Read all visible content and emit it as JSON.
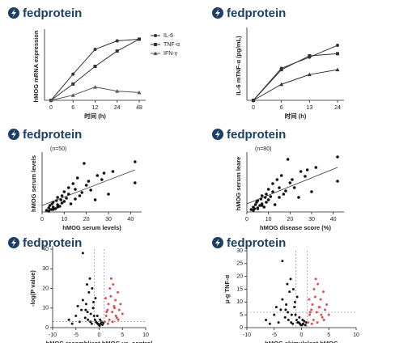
{
  "chart_data": [
    {
      "type": "line",
      "brand": "fedprotein",
      "y_label": "hMOG mRNA expression",
      "x_label": "时间 (h)",
      "categories": [
        "0",
        "6",
        "12",
        "24",
        "48"
      ],
      "ylim": [
        0,
        20
      ],
      "series": [
        {
          "name": "IL-6",
          "color": "#333333",
          "marker": "circle",
          "values": [
            0,
            7.7,
            15,
            17.5,
            18
          ]
        },
        {
          "name": "TNF-α",
          "color": "#333333",
          "marker": "square",
          "values": [
            0,
            4.8,
            10,
            14.5,
            18
          ]
        },
        {
          "name": "IFN-γ",
          "color": "#555555",
          "marker": "triangle",
          "values": [
            0,
            1.5,
            3.9,
            2.7,
            2.3
          ]
        }
      ]
    },
    {
      "type": "line",
      "brand": "fedprotein",
      "y_label": "IL-6 mTNF-α (pg/mL)",
      "x_label": "时间 (h)",
      "categories": [
        "0",
        "6",
        "13",
        "24"
      ],
      "ylim": [
        0,
        100
      ],
      "series": [
        {
          "color": "#333333",
          "marker": "circle",
          "values": [
            0,
            46,
            62,
            79
          ]
        },
        {
          "color": "#333333",
          "marker": "square",
          "values": [
            0,
            44,
            64,
            67
          ]
        },
        {
          "color": "#333333",
          "marker": "triangle",
          "values": [
            0,
            23,
            37,
            44
          ]
        }
      ]
    },
    {
      "type": "scatter",
      "brand": "fedprotein",
      "note": "(n=50)",
      "y_label": "hMOG serum levels",
      "x_label": "hMOG serum levels)",
      "xlim": [
        0,
        45
      ],
      "xticks": [
        0,
        10,
        20,
        30,
        40
      ],
      "ylim": [
        0,
        70
      ],
      "color": "#111111",
      "x": [
        2,
        3,
        3.5,
        4,
        4.5,
        5,
        5,
        6,
        6.5,
        7,
        7,
        8,
        8.5,
        9,
        9,
        10,
        10,
        11,
        12,
        12,
        13,
        14,
        15,
        15,
        16,
        17,
        18,
        19,
        20,
        21,
        22,
        24,
        25,
        27,
        28,
        30,
        32,
        42,
        42,
        3,
        5,
        7
      ],
      "values": [
        2,
        5,
        8,
        3,
        10,
        6,
        12,
        4,
        14,
        9,
        18,
        7,
        15,
        20,
        11,
        25,
        13,
        17,
        30,
        22,
        10,
        35,
        28,
        16,
        42,
        20,
        24,
        60,
        33,
        38,
        27,
        15,
        45,
        40,
        48,
        22,
        50,
        62,
        36,
        1,
        3,
        6
      ],
      "trend": {
        "x": [
          0,
          42
        ],
        "y": [
          8,
          52
        ]
      }
    },
    {
      "type": "scatter",
      "brand": "fedprotein",
      "note": "(n=80)",
      "y_label": "hMOG serum leare",
      "x_label": "hMOG disease score (%)",
      "xlim": [
        0,
        45
      ],
      "xticks": [
        0,
        10,
        20,
        30,
        40
      ],
      "ylim": [
        0,
        70
      ],
      "color": "#111111",
      "x": [
        2,
        3,
        3.5,
        4,
        4.5,
        5,
        5,
        6,
        6.5,
        7,
        7,
        8,
        8.5,
        9,
        9,
        10,
        10,
        11,
        12,
        12,
        13,
        14,
        15,
        15,
        16,
        17,
        18,
        19,
        20,
        21,
        22,
        24,
        25,
        27,
        28,
        30,
        32,
        42,
        42,
        3,
        5,
        7
      ],
      "values": [
        3,
        6,
        4,
        9,
        12,
        5,
        14,
        8,
        16,
        10,
        20,
        6,
        18,
        22,
        12,
        28,
        15,
        19,
        35,
        25,
        9,
        40,
        30,
        18,
        45,
        22,
        26,
        65,
        36,
        40,
        30,
        18,
        50,
        44,
        52,
        25,
        55,
        68,
        38,
        2,
        4,
        8
      ],
      "trend": {
        "x": [
          0,
          42
        ],
        "y": [
          10,
          55
        ]
      }
    },
    {
      "type": "volcano",
      "brand": "fedprotein",
      "y_label": "-log(P value)",
      "x_label": "hMOG recomblient hMOG vs. control",
      "xlim": [
        -10,
        10
      ],
      "xticks": [
        -10,
        -5,
        0,
        5,
        10
      ],
      "ylim": [
        0,
        40
      ],
      "yticks": [
        0,
        10,
        20,
        30,
        40
      ],
      "thresholds": {
        "x": [
          -1,
          1
        ],
        "y": 3
      },
      "series": [
        {
          "color": "#111111",
          "x": [
            -6.5,
            -5,
            -4.2,
            -3.8,
            -3.5,
            -3,
            -2.8,
            -2.5,
            -2.2,
            -2,
            -1.8,
            -1.5,
            -1.3,
            -1.1,
            -0.9,
            -0.7,
            -0.5,
            -0.3,
            -0.1,
            0.1,
            0.3,
            0.5,
            0.7,
            0.9,
            -3.5,
            -2.4,
            -1.6,
            -4.6,
            -0.8,
            -2.9,
            -1.9,
            -0.4,
            0.2,
            -5.8,
            -2.6,
            -1.2
          ],
          "values": [
            4,
            6,
            3,
            9,
            38,
            5,
            12,
            8,
            18,
            25,
            7,
            20,
            10,
            6,
            4,
            3,
            2.5,
            2,
            1.5,
            1,
            2,
            3,
            1.5,
            2.5,
            14,
            4,
            2,
            11,
            15,
            9,
            3,
            6,
            4,
            2,
            22,
            13
          ]
        },
        {
          "color": "#e05050",
          "x": [
            1.2,
            1.5,
            1.8,
            2,
            2.2,
            2.5,
            2.8,
            3,
            3.2,
            3.5,
            3.8,
            4,
            4.3,
            4.6,
            5,
            1.4,
            2.3,
            2.9,
            3.6,
            1.9,
            2.6,
            3.3,
            4.1,
            1.6
          ],
          "values": [
            3,
            6,
            9,
            12,
            4,
            16,
            8,
            22,
            11,
            14,
            5,
            18,
            9,
            12,
            7,
            15,
            20,
            3,
            6,
            2,
            25,
            10,
            4,
            8
          ]
        }
      ]
    },
    {
      "type": "volcano",
      "brand": "fedprotein",
      "y_label": "μ-g TNF-α",
      "x_label": "hMOG skimulalant hMOG",
      "xlim": [
        -10,
        10
      ],
      "xticks": [
        -10,
        -5,
        0,
        5,
        10
      ],
      "ylim": [
        0,
        30
      ],
      "yticks": [
        0,
        5,
        10,
        15,
        20,
        25,
        30
      ],
      "thresholds": {
        "x": [
          -1,
          1
        ],
        "y": 6
      },
      "series": [
        {
          "color": "#111111",
          "x": [
            -6.5,
            -5,
            -4.2,
            -3.8,
            -3.5,
            -3,
            -2.8,
            -2.5,
            -2.2,
            -2,
            -1.8,
            -1.5,
            -1.3,
            -1.1,
            -0.9,
            -0.7,
            -0.5,
            -0.3,
            -0.1,
            0.1,
            0.3,
            0.5,
            0.7,
            0.9,
            -3.5,
            -2.4,
            -1.6,
            -4.6,
            -0.8,
            -2.9,
            -1.9,
            -0.4,
            0.2,
            -5.8,
            -2.6,
            -1.2
          ],
          "values": [
            3,
            5,
            2,
            7,
            26,
            4,
            9,
            6,
            14,
            19,
            5,
            15,
            8,
            5,
            3,
            2,
            2,
            1.5,
            1,
            1,
            1.5,
            2.5,
            1,
            2,
            11,
            3,
            1.5,
            8,
            12,
            7,
            2,
            4,
            3,
            1.5,
            17,
            10
          ]
        },
        {
          "color": "#e05050",
          "x": [
            1.2,
            1.5,
            1.8,
            2,
            2.2,
            2.5,
            2.8,
            3,
            3.2,
            3.5,
            3.8,
            4,
            4.3,
            4.6,
            5,
            1.4,
            2.3,
            2.9,
            3.6,
            1.9,
            2.6,
            3.3,
            4.1,
            1.6
          ],
          "values": [
            2,
            5,
            7,
            9,
            3,
            12,
            6,
            17,
            8,
            11,
            4,
            14,
            7,
            9,
            5,
            11,
            15,
            2,
            5,
            1.5,
            19,
            8,
            3,
            6
          ]
        }
      ]
    }
  ]
}
